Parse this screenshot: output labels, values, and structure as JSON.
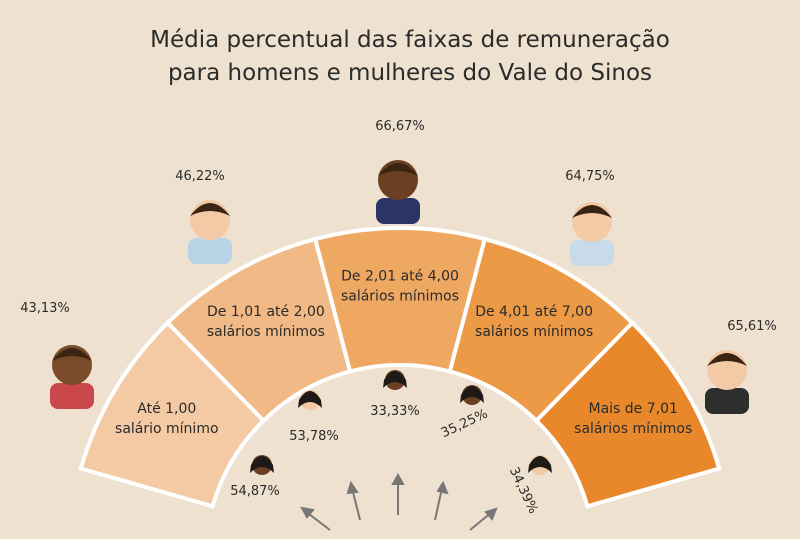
{
  "title": [
    "Média percentual das faixas de remuneração",
    "para homens e mulheres do Vale do Sinos"
  ],
  "segments": [
    {
      "label": [
        "Até 1,00",
        "salário mínimo"
      ],
      "men": "43,13%",
      "women": "54,87%"
    },
    {
      "label": [
        "De 1,01 até 2,00",
        "salários mínimos"
      ],
      "men": "46,22%",
      "women": "53,78%"
    },
    {
      "label": [
        "De 2,01 até 4,00",
        "salários mínimos"
      ],
      "men": "66,67%",
      "women": "33,33%"
    },
    {
      "label": [
        "De 4,01 até 7,00",
        "salários mínimos"
      ],
      "men": "64,75%",
      "women": "35,25%"
    },
    {
      "label": [
        "Mais de 7,01",
        "salários mínimos"
      ],
      "men": "65,61%",
      "women": "34,39%"
    }
  ]
}
